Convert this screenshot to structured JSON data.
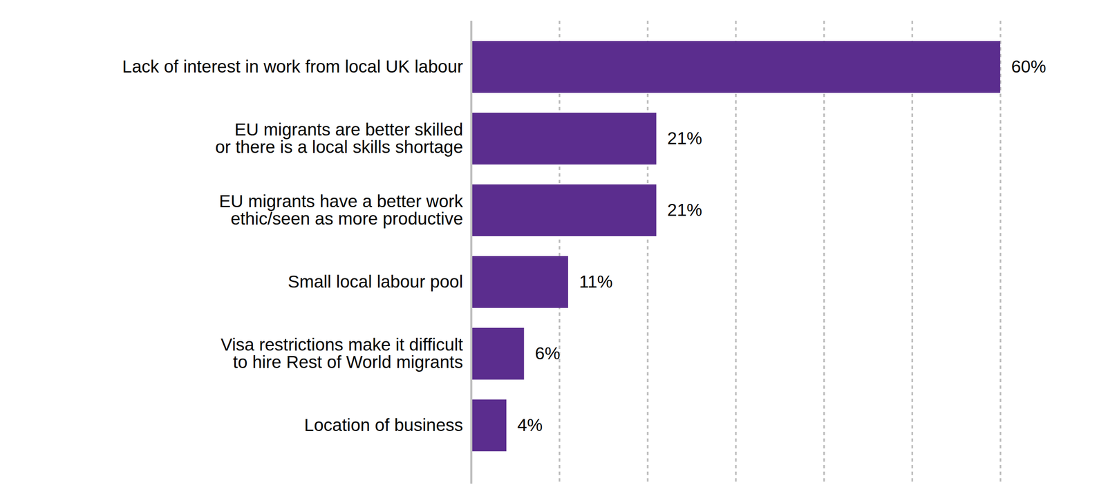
{
  "chart_data": {
    "type": "bar",
    "orientation": "horizontal",
    "categories": [
      "Lack of interest in work from local UK labour",
      "EU migrants are better skilled\nor there is a local skills shortage",
      "EU migrants have a better work\nethic/seen as more productive",
      "Small local labour pool",
      "Visa restrictions make it difficult\nto hire Rest of World migrants",
      "Location of business"
    ],
    "values": [
      60,
      21,
      21,
      11,
      6,
      4
    ],
    "value_labels": [
      "60%",
      "21%",
      "21%",
      "11%",
      "6%",
      "4%"
    ],
    "color": "#5b2d8e",
    "xlim": [
      0,
      60
    ],
    "xticks": [
      0,
      10,
      20,
      30,
      40,
      50,
      60
    ],
    "grid": true,
    "data_labels": true,
    "tick_labels": "y"
  }
}
